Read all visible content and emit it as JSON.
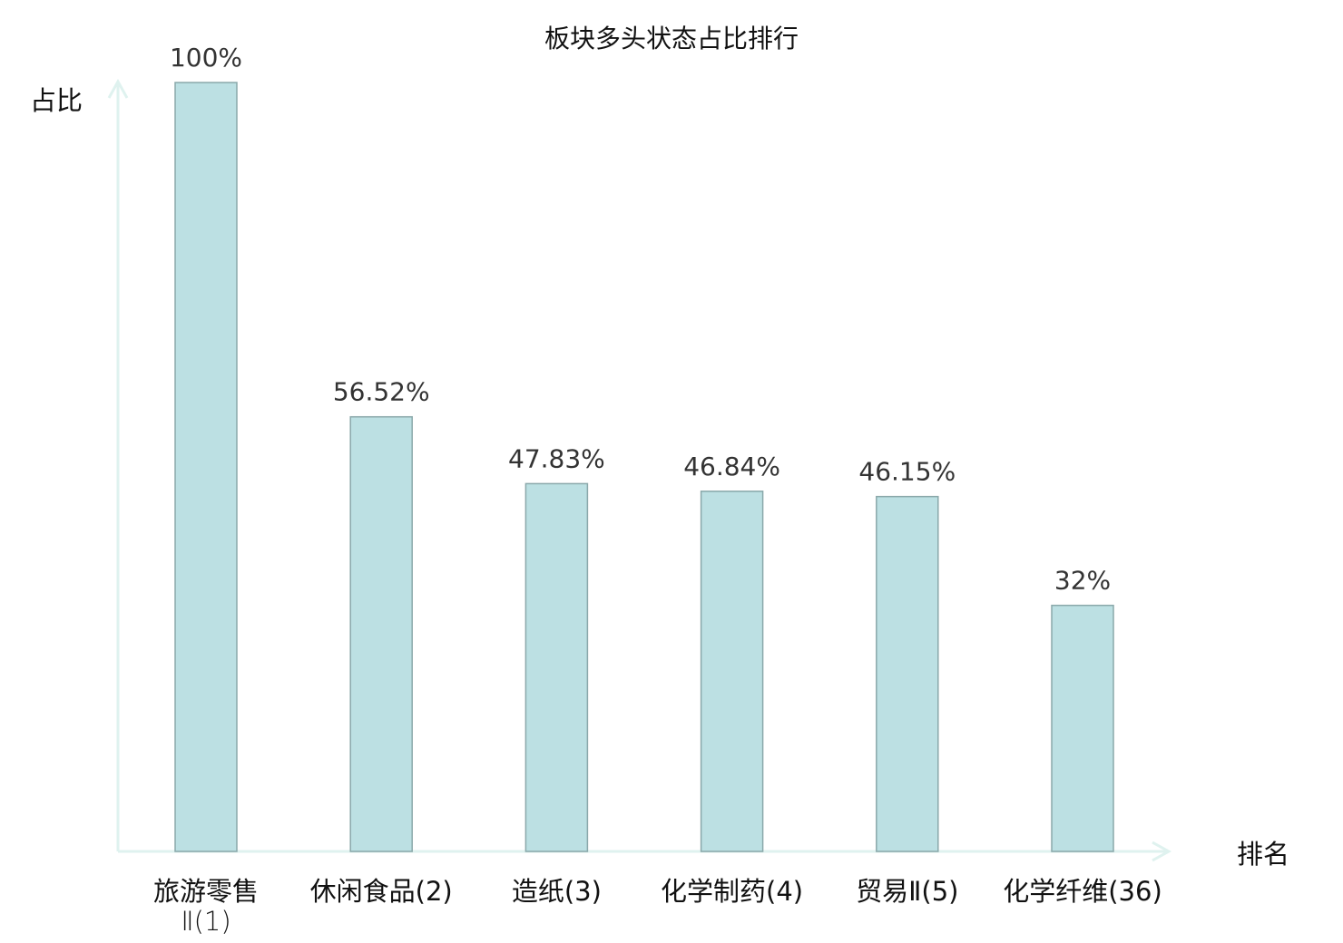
{
  "chart_data": {
    "type": "bar",
    "title": "板块多头状态占比排行",
    "xlabel": "排名",
    "ylabel": "占比",
    "categories": [
      {
        "name": "旅游零售",
        "suffix": "Ⅱ(1)"
      },
      {
        "name": "休闲食品",
        "suffix": "(2)"
      },
      {
        "name": "造纸",
        "suffix": "(3)"
      },
      {
        "name": "化学制药",
        "suffix": "(4)"
      },
      {
        "name": "贸易Ⅱ",
        "suffix": "(5)"
      },
      {
        "name": "化学纤维",
        "suffix": "(36)"
      }
    ],
    "values": [
      100,
      56.52,
      47.83,
      46.84,
      46.15,
      32
    ],
    "data_labels": [
      "100%",
      "56.52%",
      "47.83%",
      "46.84%",
      "46.15%",
      "32%"
    ],
    "highlight_index": 5,
    "ylim": [
      0,
      100
    ],
    "grid": false,
    "colors": {
      "bar_fill": "#bce0e3",
      "bar_stroke": "#8aa8aa",
      "axis": "#dff2ef",
      "highlight_label": "#ff0000",
      "label": "#333333"
    }
  }
}
